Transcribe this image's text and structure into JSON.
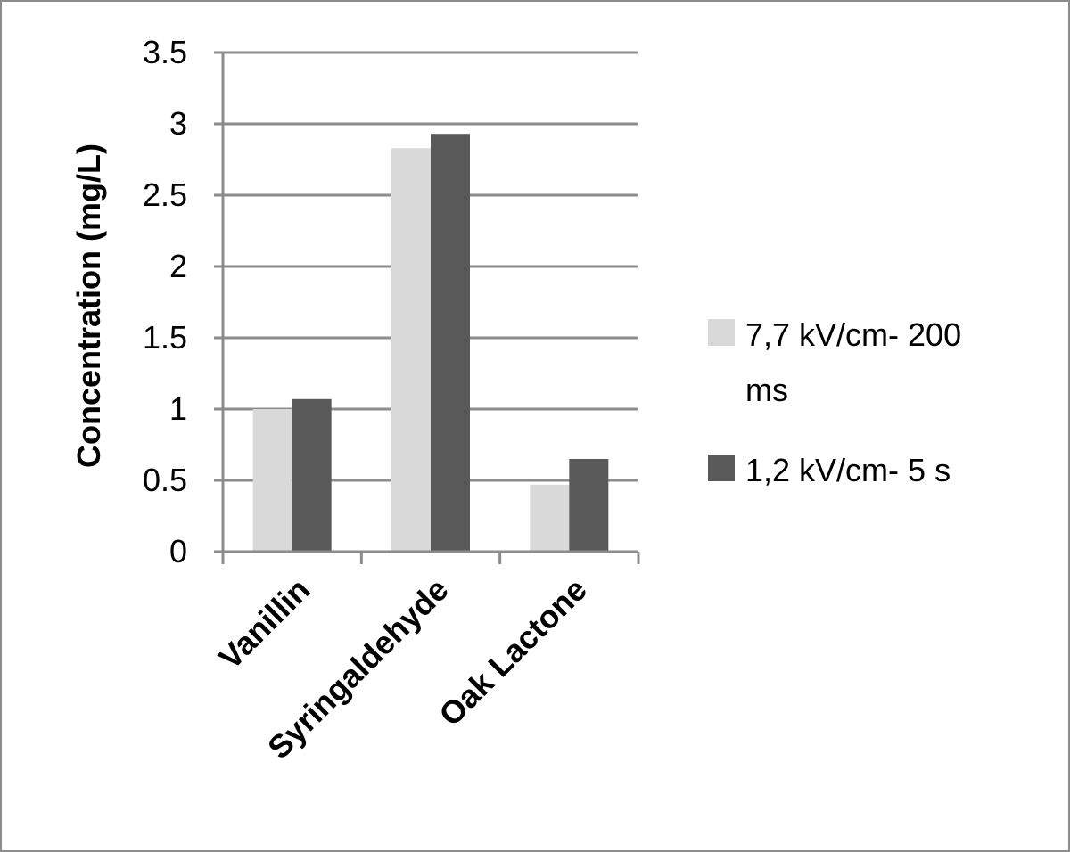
{
  "chart_data": {
    "type": "bar",
    "title": "",
    "xlabel": "",
    "ylabel": "Concentration (mg/L)",
    "categories": [
      "Vanillin",
      "Syringaldehyde",
      "Oak Lactone"
    ],
    "series": [
      {
        "name": "7,7 kV/cm- 200 ms",
        "values": [
          1.0,
          2.83,
          0.47
        ],
        "color": "#d9d9d9"
      },
      {
        "name": "1,2 kV/cm- 5 s",
        "values": [
          1.07,
          2.93,
          0.65
        ],
        "color": "#595959"
      }
    ],
    "ylim": [
      0,
      3.5
    ],
    "yticks": [
      "0",
      "0.5",
      "1",
      "1.5",
      "2",
      "2.5",
      "3",
      "3.5"
    ],
    "grid": true,
    "legend": "right"
  },
  "legend": {
    "item1_line1": "7,7 kV/cm- 200",
    "item1_line2": "ms",
    "item2": "1,2 kV/cm- 5 s"
  }
}
